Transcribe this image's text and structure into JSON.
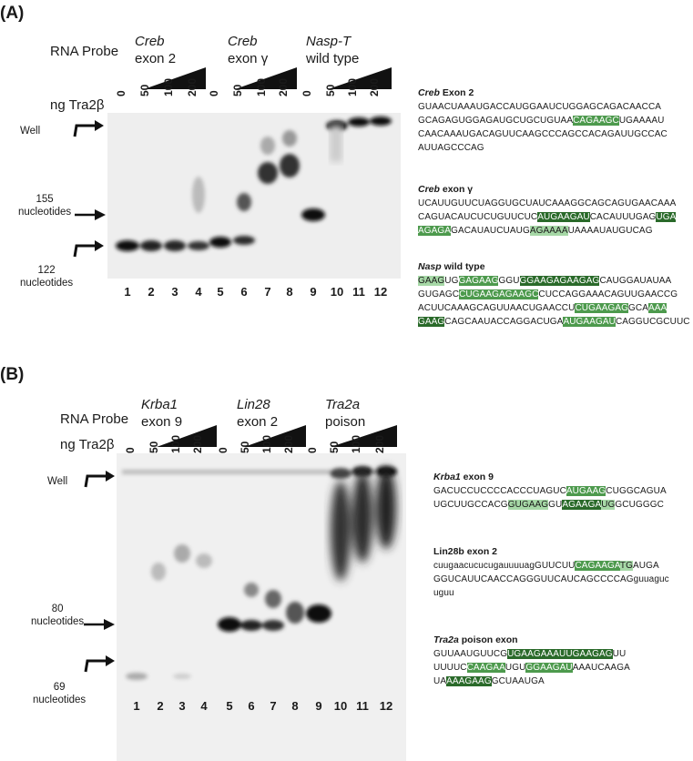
{
  "panels": [
    {
      "label": "(A)",
      "probe_title": "RNA Probe",
      "tra_label": "ng Tra2β",
      "probes": [
        {
          "name_italic": "Creb",
          "name_rest": "exon 2",
          "line2": ""
        },
        {
          "name_italic": "Creb",
          "name_rest": "exon γ",
          "line2": ""
        },
        {
          "name_italic": "Nasp-T",
          "name_rest": "wild type",
          "line2": ""
        }
      ],
      "amounts": [
        "0",
        "50",
        "100",
        "200",
        "0",
        "50",
        "100",
        "200",
        "0",
        "50",
        "100",
        "200"
      ],
      "lanes": [
        "1",
        "2",
        "3",
        "4",
        "5",
        "6",
        "7",
        "8",
        "9",
        "10",
        "11",
        "12"
      ],
      "well_label": "Well",
      "marker_upper": {
        "num": "155",
        "unit": "nucleotides"
      },
      "marker_lower": {
        "num": "122",
        "unit": "nucleotides"
      },
      "sequences": [
        {
          "title_bold": "Creb",
          "title_rest": " Exon 2",
          "title_italic": true,
          "lines": [
            [
              {
                "t": "GUAACUAAAUGACCAUGGAAUCUGGAGCAGACAACCA",
                "h": ""
              }
            ],
            [
              {
                "t": "GCAGAGUGGAGAUGCUGCUGUAA",
                "h": ""
              },
              {
                "t": "CAGAAGC",
                "h": "hm"
              },
              {
                "t": "UGAAAAU",
                "h": ""
              }
            ],
            [
              {
                "t": "CAACAAAUGACAGUUCAAGCCCAGCCACAGAUUGCCAC",
                "h": ""
              }
            ],
            [
              {
                "t": "AUUAGCCCAG",
                "h": ""
              }
            ]
          ]
        },
        {
          "title_bold": "Creb",
          "title_rest": " exon γ",
          "title_italic": true,
          "lines": [
            [
              {
                "t": "UCAUUGUUCUAGGUGCUAUCAAAGGCAGCAGUGAACAAA",
                "h": ""
              }
            ],
            [
              {
                "t": "CAGUACAUCUCUGUUCUC",
                "h": ""
              },
              {
                "t": "AUGAAGAU",
                "h": "hd"
              },
              {
                "t": "CACAUUUGAG",
                "h": ""
              },
              {
                "t": "UGA",
                "h": "hd"
              }
            ],
            [
              {
                "t": "AGAGA",
                "h": "hm"
              },
              {
                "t": "GACAUAUCUAUG",
                "h": ""
              },
              {
                "t": "AGAAAA",
                "h": "hl"
              },
              {
                "t": "UAAAAUAUGUCAG",
                "h": ""
              }
            ]
          ]
        },
        {
          "title_bold": "Nasp",
          "title_rest": " wild type",
          "title_italic": true,
          "lines": [
            [
              {
                "t": "GAAG",
                "h": "hl"
              },
              {
                "t": "UG",
                "h": ""
              },
              {
                "t": "GAGAAG",
                "h": "hm"
              },
              {
                "t": "GGU",
                "h": ""
              },
              {
                "t": "GGAAGAGAAGAG",
                "h": "hd"
              },
              {
                "t": "CAUGGAUAUAA",
                "h": ""
              }
            ],
            [
              {
                "t": "GUGAGC",
                "h": ""
              },
              {
                "t": "CUGAAGAGAAGC",
                "h": "hm"
              },
              {
                "t": "CUCCAGGAAACAGUUGAACCG",
                "h": ""
              }
            ],
            [
              {
                "t": "ACUUCAAAGCAGUUAACUGAACCU",
                "h": ""
              },
              {
                "t": "CUGAAGAG",
                "h": "hm"
              },
              {
                "t": "GCA",
                "h": ""
              },
              {
                "t": "AAA",
                "h": "hm"
              }
            ],
            [
              {
                "t": "GAAG",
                "h": "hd"
              },
              {
                "t": "CAGCAAUACCAGGACUGA",
                "h": ""
              },
              {
                "t": "AUGAAGAU",
                "h": "hm"
              },
              {
                "t": "CAGGUCGCUUC",
                "h": ""
              }
            ]
          ]
        }
      ]
    },
    {
      "label": "(B)",
      "probe_title": "RNA Probe",
      "tra_label": "ng Tra2β",
      "probes": [
        {
          "name_italic": "Krba1",
          "name_rest": "exon 9",
          "line2": ""
        },
        {
          "name_italic": "Lin28",
          "name_rest": "exon 2",
          "line2": ""
        },
        {
          "name_italic": "Tra2a",
          "name_rest": "poison",
          "line2": ""
        }
      ],
      "amounts": [
        "0",
        "50",
        "100",
        "200",
        "0",
        "50",
        "100",
        "200",
        "0",
        "50",
        "100",
        "200"
      ],
      "lanes": [
        "1",
        "2",
        "3",
        "4",
        "5",
        "6",
        "7",
        "8",
        "9",
        "10",
        "11",
        "12"
      ],
      "well_label": "Well",
      "marker_upper": {
        "num": "80",
        "unit": "nucleotides"
      },
      "marker_lower": {
        "num": "69",
        "unit": "nucleotides"
      },
      "sequences": [
        {
          "title_bold": "Krba1",
          "title_rest": " exon 9",
          "title_italic": true,
          "lines": [
            [
              {
                "t": "GACUCCUCCCCACCCUAGUC",
                "h": ""
              },
              {
                "t": "AUGAAG",
                "h": "hm"
              },
              {
                "t": "CUGGCAGUA",
                "h": ""
              }
            ],
            [
              {
                "t": "UGCUUGCCACG",
                "h": ""
              },
              {
                "t": "GUGAAG",
                "h": "hl"
              },
              {
                "t": "GU",
                "h": ""
              },
              {
                "t": "AGAAGA",
                "h": "hd"
              },
              {
                "t": "UG",
                "h": "hl"
              },
              {
                "t": "GCUGGGC",
                "h": ""
              }
            ]
          ]
        },
        {
          "title_bold": "Lin28b exon 2",
          "title_rest": "",
          "title_italic": false,
          "lines": [
            [
              {
                "t": "cuugaacucucugauuuuagGUUCUU",
                "h": ""
              },
              {
                "t": "CAGAAGA",
                "h": "hm"
              },
              {
                "t": "TG",
                "h": "hl"
              },
              {
                "t": "AUGA",
                "h": ""
              }
            ],
            [
              {
                "t": "GGUCAUUCAACCAGGGUUCAUCAGCCCCAGguuaguc",
                "h": ""
              }
            ],
            [
              {
                "t": "uguu",
                "h": ""
              }
            ]
          ]
        },
        {
          "title_bold": "Tra2a",
          "title_rest": " poison exon",
          "title_italic": true,
          "lines": [
            [
              {
                "t": "GUUAAUGUUCG",
                "h": ""
              },
              {
                "t": "UGAAGAAAU",
                "h": "hd"
              },
              {
                "t": "UGAAGAG",
                "h": "hd"
              },
              {
                "t": "UU",
                "h": ""
              }
            ],
            [
              {
                "t": "UUUUC",
                "h": ""
              },
              {
                "t": "CAAGAA",
                "h": "hm"
              },
              {
                "t": "UGU",
                "h": ""
              },
              {
                "t": "GGAAGAU",
                "h": "hm"
              },
              {
                "t": "AAAUCAAGA",
                "h": ""
              }
            ],
            [
              {
                "t": "UA",
                "h": ""
              },
              {
                "t": "AAAGAAG",
                "h": "hd"
              },
              {
                "t": "GCUAAUGA",
                "h": ""
              }
            ]
          ]
        }
      ]
    }
  ]
}
